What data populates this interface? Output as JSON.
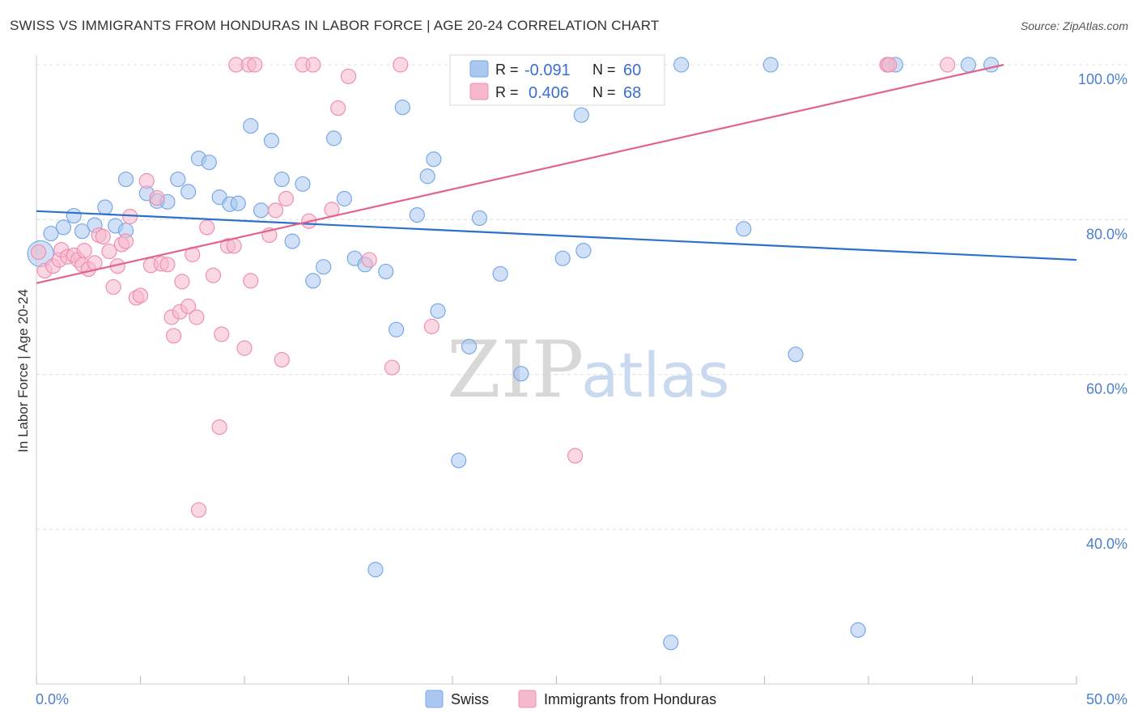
{
  "header": {
    "title": "SWISS VS IMMIGRANTS FROM HONDURAS IN LABOR FORCE | AGE 20-24 CORRELATION CHART",
    "source": "Source: ZipAtlas.com"
  },
  "watermark": {
    "zip": "ZIP",
    "atlas": "atlas"
  },
  "legend_box": {
    "rows": [
      {
        "r_label": "R =",
        "r_value": "-0.091",
        "n_label": "N =",
        "n_value": "60",
        "color": "#aac8f0"
      },
      {
        "r_label": "R =",
        "r_value": "0.406",
        "n_label": "N =",
        "n_value": "68",
        "color": "#f5b8cc"
      }
    ]
  },
  "bottom_legend": [
    {
      "label": "Swiss",
      "color": "#aac8f0"
    },
    {
      "label": "Immigrants from Honduras",
      "color": "#f5b8cc"
    }
  ],
  "chart_data": {
    "type": "scatter",
    "title": "SWISS VS IMMIGRANTS FROM HONDURAS IN LABOR FORCE | AGE 20-24 CORRELATION CHART",
    "xlabel": "",
    "ylabel": "In Labor Force | Age 20-24",
    "xlim": [
      0,
      50
    ],
    "ylim": [
      22,
      102
    ],
    "x_tick_labels": [
      {
        "value": 0,
        "label": "0.0%"
      },
      {
        "value": 50,
        "label": "50.0%"
      }
    ],
    "y_tick_labels": [
      {
        "value": 100,
        "label": "100.0%"
      },
      {
        "value": 80,
        "label": "80.0%"
      },
      {
        "value": 60,
        "label": "60.0%"
      },
      {
        "value": 40,
        "label": "40.0%"
      }
    ],
    "grid": true,
    "legend_position": "top-center",
    "series": [
      {
        "name": "Swiss",
        "color": "#7aa8e6",
        "fill": "#aac8f0",
        "trend": {
          "x": [
            0,
            50
          ],
          "y": [
            81.1,
            74.8
          ],
          "color": "#2f6fcc"
        },
        "points": [
          [
            0.2,
            75.6
          ],
          [
            0.7,
            78.2
          ],
          [
            1.3,
            79.0
          ],
          [
            1.8,
            80.5
          ],
          [
            2.2,
            78.5
          ],
          [
            2.8,
            79.3
          ],
          [
            3.3,
            81.6
          ],
          [
            3.8,
            79.2
          ],
          [
            4.3,
            78.6
          ],
          [
            4.3,
            85.2
          ],
          [
            5.3,
            83.4
          ],
          [
            5.8,
            82.4
          ],
          [
            6.3,
            82.3
          ],
          [
            6.8,
            85.2
          ],
          [
            7.3,
            83.6
          ],
          [
            7.8,
            87.9
          ],
          [
            8.3,
            87.4
          ],
          [
            8.8,
            82.9
          ],
          [
            9.3,
            82.0
          ],
          [
            9.7,
            82.1
          ],
          [
            10.3,
            92.1
          ],
          [
            10.8,
            81.2
          ],
          [
            11.3,
            90.2
          ],
          [
            11.8,
            85.2
          ],
          [
            12.3,
            77.2
          ],
          [
            12.8,
            84.6
          ],
          [
            13.3,
            72.1
          ],
          [
            13.8,
            73.9
          ],
          [
            14.3,
            90.5
          ],
          [
            14.8,
            82.7
          ],
          [
            15.3,
            75.0
          ],
          [
            15.8,
            74.2
          ],
          [
            16.3,
            34.8
          ],
          [
            16.8,
            73.3
          ],
          [
            17.3,
            65.8
          ],
          [
            17.6,
            94.5
          ],
          [
            18.3,
            80.6
          ],
          [
            18.8,
            85.6
          ],
          [
            19.1,
            87.8
          ],
          [
            19.3,
            68.2
          ],
          [
            20.3,
            48.9
          ],
          [
            20.8,
            63.6
          ],
          [
            21.3,
            80.2
          ],
          [
            22.3,
            73.0
          ],
          [
            22.5,
            100
          ],
          [
            23.3,
            60.1
          ],
          [
            24.0,
            100
          ],
          [
            25.3,
            75.0
          ],
          [
            26.2,
            93.5
          ],
          [
            26.3,
            76.0
          ],
          [
            30.5,
            25.4
          ],
          [
            31.0,
            100
          ],
          [
            34.0,
            78.8
          ],
          [
            35.3,
            100
          ],
          [
            36.5,
            62.6
          ],
          [
            39.5,
            27.0
          ],
          [
            40.9,
            100
          ],
          [
            41.3,
            100
          ],
          [
            44.8,
            100
          ],
          [
            45.9,
            100
          ]
        ]
      },
      {
        "name": "Immigrants from Honduras",
        "color": "#f08fb0",
        "fill": "#f5b8cc",
        "trend": {
          "x": [
            0,
            46.5
          ],
          "y": [
            71.8,
            100
          ],
          "color": "#e0648e"
        },
        "points": [
          [
            0.1,
            75.8
          ],
          [
            0.4,
            73.4
          ],
          [
            0.8,
            74.0
          ],
          [
            1.1,
            74.8
          ],
          [
            1.2,
            76.1
          ],
          [
            1.5,
            75.2
          ],
          [
            1.8,
            75.4
          ],
          [
            2.0,
            74.8
          ],
          [
            2.2,
            74.2
          ],
          [
            2.3,
            76.0
          ],
          [
            2.5,
            73.6
          ],
          [
            2.8,
            74.4
          ],
          [
            3.0,
            78.0
          ],
          [
            3.2,
            77.8
          ],
          [
            3.5,
            75.9
          ],
          [
            3.7,
            71.3
          ],
          [
            3.9,
            74.0
          ],
          [
            4.1,
            76.8
          ],
          [
            4.3,
            77.2
          ],
          [
            4.5,
            80.4
          ],
          [
            4.8,
            69.9
          ],
          [
            5.0,
            70.2
          ],
          [
            5.3,
            85.0
          ],
          [
            5.5,
            74.1
          ],
          [
            5.8,
            82.8
          ],
          [
            6.0,
            74.3
          ],
          [
            6.3,
            74.2
          ],
          [
            6.5,
            67.4
          ],
          [
            6.6,
            65.0
          ],
          [
            6.9,
            68.1
          ],
          [
            7.0,
            72.0
          ],
          [
            7.3,
            68.8
          ],
          [
            7.5,
            75.5
          ],
          [
            7.7,
            67.4
          ],
          [
            7.8,
            42.5
          ],
          [
            8.2,
            79.0
          ],
          [
            8.5,
            72.8
          ],
          [
            8.8,
            53.2
          ],
          [
            8.9,
            65.2
          ],
          [
            9.2,
            76.6
          ],
          [
            9.5,
            76.6
          ],
          [
            9.6,
            100
          ],
          [
            10.0,
            63.4
          ],
          [
            10.2,
            100
          ],
          [
            10.3,
            72.1
          ],
          [
            10.5,
            100
          ],
          [
            11.2,
            78.0
          ],
          [
            11.5,
            81.2
          ],
          [
            11.8,
            61.9
          ],
          [
            12.0,
            82.7
          ],
          [
            12.8,
            100
          ],
          [
            13.1,
            79.8
          ],
          [
            13.3,
            100
          ],
          [
            14.2,
            81.3
          ],
          [
            14.5,
            94.4
          ],
          [
            15.0,
            98.5
          ],
          [
            16.0,
            74.8
          ],
          [
            17.1,
            60.9
          ],
          [
            17.5,
            100
          ],
          [
            19.0,
            66.2
          ],
          [
            23.3,
            100
          ],
          [
            25.0,
            100
          ],
          [
            25.9,
            49.5
          ],
          [
            28.1,
            100
          ],
          [
            28.8,
            100
          ],
          [
            40.9,
            100
          ],
          [
            41.0,
            100
          ],
          [
            43.8,
            100
          ]
        ]
      }
    ]
  }
}
